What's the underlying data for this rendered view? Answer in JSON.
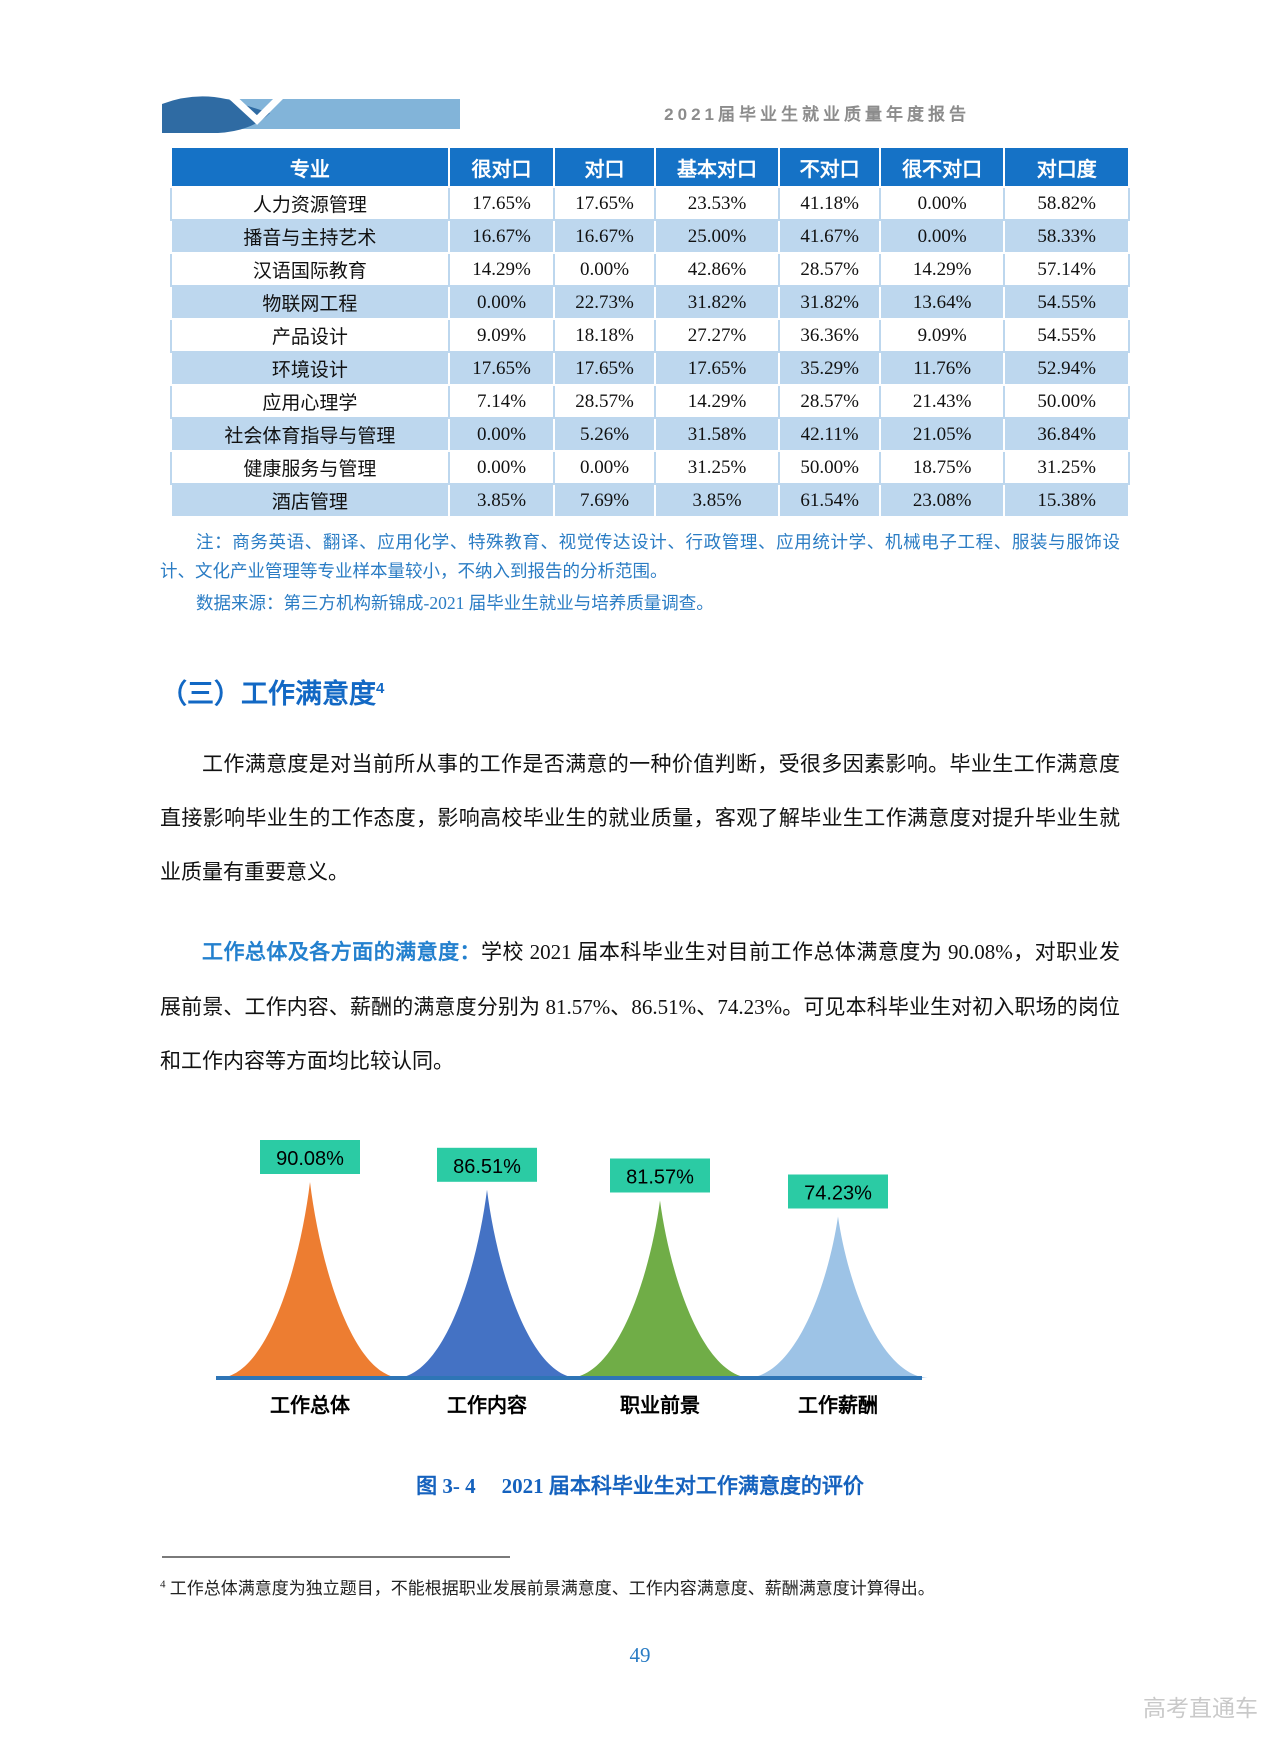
{
  "header": {
    "title": "2021届毕业生就业质量年度报告"
  },
  "table": {
    "columns": [
      "专业",
      "很对口",
      "对口",
      "基本对口",
      "不对口",
      "很不对口",
      "对口度"
    ],
    "rows": [
      [
        "人力资源管理",
        "17.65%",
        "17.65%",
        "23.53%",
        "41.18%",
        "0.00%",
        "58.82%"
      ],
      [
        "播音与主持艺术",
        "16.67%",
        "16.67%",
        "25.00%",
        "41.67%",
        "0.00%",
        "58.33%"
      ],
      [
        "汉语国际教育",
        "14.29%",
        "0.00%",
        "42.86%",
        "28.57%",
        "14.29%",
        "57.14%"
      ],
      [
        "物联网工程",
        "0.00%",
        "22.73%",
        "31.82%",
        "31.82%",
        "13.64%",
        "54.55%"
      ],
      [
        "产品设计",
        "9.09%",
        "18.18%",
        "27.27%",
        "36.36%",
        "9.09%",
        "54.55%"
      ],
      [
        "环境设计",
        "17.65%",
        "17.65%",
        "17.65%",
        "35.29%",
        "11.76%",
        "52.94%"
      ],
      [
        "应用心理学",
        "7.14%",
        "28.57%",
        "14.29%",
        "28.57%",
        "21.43%",
        "50.00%"
      ],
      [
        "社会体育指导与管理",
        "0.00%",
        "5.26%",
        "31.58%",
        "42.11%",
        "21.05%",
        "36.84%"
      ],
      [
        "健康服务与管理",
        "0.00%",
        "0.00%",
        "31.25%",
        "50.00%",
        "18.75%",
        "31.25%"
      ],
      [
        "酒店管理",
        "3.85%",
        "7.69%",
        "3.85%",
        "61.54%",
        "23.08%",
        "15.38%"
      ]
    ],
    "note": "注：商务英语、翻译、应用化学、特殊教育、视觉传达设计、行政管理、应用统计学、机械电子工程、服装与服饰设计、文化产业管理等专业样本量较小，不纳入到报告的分析范围。",
    "source": "数据来源：第三方机构新锦成-2021 届毕业生就业与培养质量调查。"
  },
  "section": {
    "heading": "（三）工作满意度",
    "footnote_ref": "4"
  },
  "paragraphs": {
    "p1": "工作满意度是对当前所从事的工作是否满意的一种价值判断，受很多因素影响。毕业生工作满意度直接影响毕业生的工作态度，影响高校毕业生的就业质量，客观了解毕业生工作满意度对提升毕业生就业质量有重要意义。",
    "p2_lead": "工作总体及各方面的满意度：",
    "p2_rest": "学校 2021 届本科毕业生对目前工作总体满意度为 90.08%，对职业发展前景、工作内容、薪酬的满意度分别为 81.57%、86.51%、74.23%。可见本科毕业生对初入职场的岗位和工作内容等方面均比较认同。"
  },
  "chart_data": {
    "type": "area",
    "categories": [
      "工作总体",
      "工作内容",
      "职业前景",
      "工作薪酬"
    ],
    "values": [
      90.08,
      86.51,
      81.57,
      74.23
    ],
    "labels": [
      "90.08%",
      "86.51%",
      "81.57%",
      "74.23%"
    ],
    "colors": [
      "#ED7D31",
      "#4472C4",
      "#70AD47",
      "#9DC3E6"
    ],
    "label_box_color": "#2BCBA4",
    "baseline_color": "#2E75B6",
    "title": "图 3- 4 2021 届本科毕业生对工作满意度的评价",
    "xlabel": "",
    "ylabel": "",
    "ylim": [
      0,
      100
    ],
    "grid": false,
    "legend": "none"
  },
  "figure": {
    "label": "图 3- 4",
    "title": "2021 届本科毕业生对工作满意度的评价"
  },
  "footnote": {
    "ref": "4",
    "text": "工作总体满意度为独立题目，不能根据职业发展前景满意度、工作内容满意度、薪酬满意度计算得出。"
  },
  "page_number": "49",
  "watermark": "高考直通车"
}
